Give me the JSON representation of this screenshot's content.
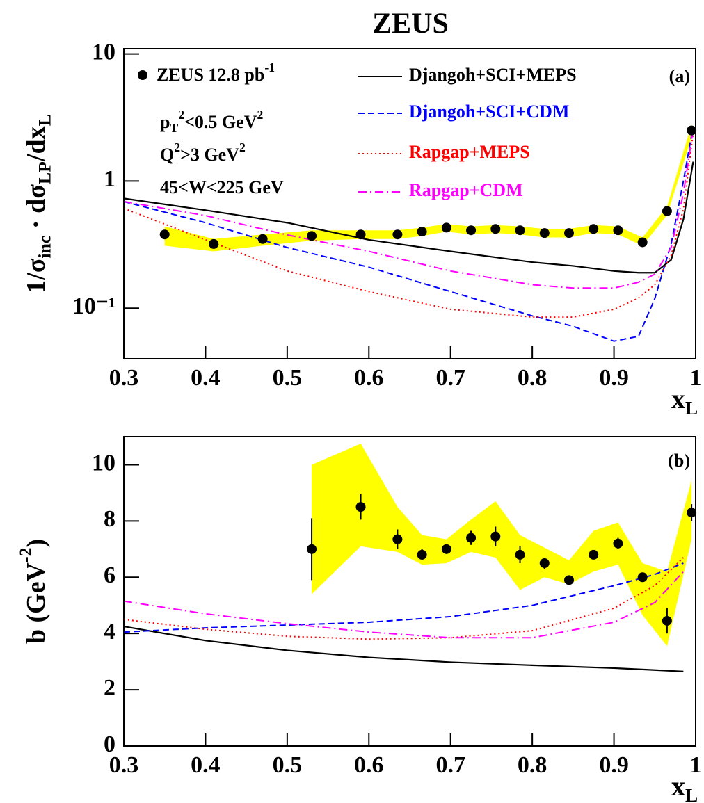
{
  "chart_data": [
    {
      "type": "line",
      "title": "ZEUS",
      "panel_label": "(a)",
      "log_y": true,
      "ylabel_parts": [
        {
          "t": "1/σ"
        },
        {
          "t": "inc",
          "s": "sub"
        },
        {
          "t": " · dσ"
        },
        {
          "t": "LP",
          "s": "sub"
        },
        {
          "t": "/dx"
        },
        {
          "t": "L",
          "s": "sub"
        }
      ],
      "xlabel_parts": [
        {
          "t": "x"
        },
        {
          "t": "L",
          "s": "sub"
        }
      ],
      "xlim": [
        0.3,
        1
      ],
      "xticks": [
        0.3,
        0.4,
        0.5,
        0.6,
        0.7,
        0.8,
        0.9,
        1
      ],
      "ylim": [
        0.04,
        11
      ],
      "yticks": [
        {
          "value": 0.1,
          "label": "10⁻¹"
        },
        1,
        10
      ],
      "annotations": [
        [
          {
            "t": "p"
          },
          {
            "t": "T",
            "s": "sub"
          },
          {
            "t": "2",
            "s": "sup"
          },
          {
            "t": "<0.5 GeV"
          },
          {
            "t": "2",
            "s": "sup"
          }
        ],
        [
          {
            "t": "Q"
          },
          {
            "t": "2",
            "s": "sup"
          },
          {
            "t": ">3 GeV"
          },
          {
            "t": "2",
            "s": "sup"
          }
        ],
        [
          {
            "t": "45<W<225 GeV"
          }
        ]
      ],
      "series": [
        {
          "kind": "points",
          "name_parts": [
            {
              "t": "ZEUS 12.8 pb"
            },
            {
              "t": "-1",
              "s": "sup"
            }
          ],
          "color": "#000000",
          "band_color": "#ffff00",
          "x": [
            0.35,
            0.41,
            0.47,
            0.53,
            0.59,
            0.635,
            0.665,
            0.695,
            0.725,
            0.755,
            0.785,
            0.815,
            0.845,
            0.875,
            0.905,
            0.935,
            0.965,
            0.995
          ],
          "values": [
            0.38,
            0.32,
            0.35,
            0.37,
            0.38,
            0.38,
            0.4,
            0.43,
            0.41,
            0.42,
            0.41,
            0.39,
            0.39,
            0.42,
            0.41,
            0.33,
            0.58,
            2.5
          ],
          "band_lower": [
            0.31,
            0.28,
            0.31,
            0.34,
            0.35,
            0.35,
            0.37,
            0.4,
            0.38,
            0.39,
            0.38,
            0.36,
            0.36,
            0.39,
            0.38,
            0.31,
            0.54,
            2.2
          ],
          "band_upper": [
            0.44,
            0.35,
            0.38,
            0.41,
            0.41,
            0.41,
            0.43,
            0.46,
            0.44,
            0.45,
            0.44,
            0.42,
            0.42,
            0.45,
            0.44,
            0.36,
            0.63,
            2.8
          ]
        },
        {
          "kind": "line",
          "name": "Djangoh+SCI+MEPS",
          "color": "#000000",
          "style": "solid",
          "x": [
            0.3,
            0.4,
            0.5,
            0.6,
            0.7,
            0.8,
            0.85,
            0.9,
            0.93,
            0.95,
            0.97,
            0.985,
            0.997
          ],
          "values": [
            0.73,
            0.59,
            0.47,
            0.345,
            0.28,
            0.23,
            0.215,
            0.196,
            0.19,
            0.19,
            0.24,
            0.5,
            1.42
          ]
        },
        {
          "kind": "line",
          "name": "Djangoh+SCI+CDM",
          "color": "#0000ff",
          "style": "dashed",
          "x": [
            0.3,
            0.4,
            0.5,
            0.6,
            0.7,
            0.8,
            0.85,
            0.9,
            0.93,
            0.95,
            0.97,
            0.985,
            0.997
          ],
          "values": [
            0.69,
            0.47,
            0.3,
            0.21,
            0.135,
            0.087,
            0.072,
            0.055,
            0.06,
            0.119,
            0.32,
            1.0,
            2.7
          ]
        },
        {
          "kind": "line",
          "name": "Rapgap+MEPS",
          "color": "#ff0000",
          "style": "dotted",
          "x": [
            0.3,
            0.4,
            0.5,
            0.6,
            0.7,
            0.8,
            0.85,
            0.9,
            0.93,
            0.95,
            0.97,
            0.985,
            0.997
          ],
          "values": [
            0.61,
            0.345,
            0.196,
            0.135,
            0.098,
            0.085,
            0.085,
            0.098,
            0.12,
            0.153,
            0.26,
            0.6,
            2.4
          ]
        },
        {
          "kind": "line",
          "name": "Rapgap+CDM",
          "color": "#ff00ff",
          "style": "dashdot",
          "x": [
            0.3,
            0.4,
            0.5,
            0.6,
            0.7,
            0.8,
            0.85,
            0.9,
            0.93,
            0.95,
            0.97,
            0.985,
            0.997
          ],
          "values": [
            0.69,
            0.535,
            0.377,
            0.28,
            0.196,
            0.153,
            0.144,
            0.144,
            0.16,
            0.185,
            0.3,
            0.8,
            2.56
          ]
        }
      ]
    },
    {
      "type": "line",
      "panel_label": "(b)",
      "log_y": false,
      "ylabel_parts": [
        {
          "t": "b (GeV"
        },
        {
          "t": "-2",
          "s": "sup"
        },
        {
          "t": ")"
        }
      ],
      "xlabel_parts": [
        {
          "t": "x"
        },
        {
          "t": "L",
          "s": "sub"
        }
      ],
      "xlim": [
        0.3,
        1
      ],
      "xticks": [
        0.3,
        0.4,
        0.5,
        0.6,
        0.7,
        0.8,
        0.9,
        1
      ],
      "ylim": [
        0,
        11
      ],
      "yticks": [
        0,
        2,
        4,
        6,
        8,
        10
      ],
      "series": [
        {
          "kind": "points",
          "color": "#000000",
          "band_color": "#ffff00",
          "x": [
            0.53,
            0.59,
            0.635,
            0.665,
            0.695,
            0.725,
            0.755,
            0.785,
            0.815,
            0.845,
            0.875,
            0.905,
            0.935,
            0.965,
            0.995
          ],
          "values": [
            7.0,
            8.5,
            7.35,
            6.8,
            7.0,
            7.4,
            7.45,
            6.8,
            6.5,
            5.9,
            6.8,
            7.2,
            6.0,
            4.45,
            8.3
          ],
          "errors": [
            1.1,
            0.45,
            0.35,
            0.2,
            0.15,
            0.25,
            0.35,
            0.3,
            0.2,
            0.1,
            0.1,
            0.2,
            0.15,
            0.45,
            0.3
          ],
          "band_lower": [
            5.4,
            7.1,
            6.9,
            6.45,
            6.5,
            6.9,
            6.7,
            5.55,
            6.0,
            5.75,
            6.2,
            6.45,
            4.65,
            3.55,
            7.35
          ],
          "band_upper": [
            10.0,
            10.75,
            8.5,
            7.5,
            7.35,
            8.05,
            8.7,
            7.5,
            7.05,
            6.6,
            7.65,
            7.95,
            6.5,
            6.2,
            9.45
          ]
        },
        {
          "kind": "line",
          "color": "#000000",
          "style": "solid",
          "x": [
            0.3,
            0.4,
            0.5,
            0.6,
            0.7,
            0.8,
            0.9,
            0.95,
            0.985
          ],
          "values": [
            4.25,
            3.75,
            3.4,
            3.15,
            2.98,
            2.87,
            2.77,
            2.7,
            2.65
          ]
        },
        {
          "kind": "line",
          "color": "#0000ff",
          "style": "dashed",
          "x": [
            0.3,
            0.4,
            0.5,
            0.6,
            0.7,
            0.8,
            0.9,
            0.95,
            0.985
          ],
          "values": [
            4.05,
            4.2,
            4.3,
            4.4,
            4.6,
            5.0,
            5.7,
            6.1,
            6.5
          ]
        },
        {
          "kind": "line",
          "color": "#ff0000",
          "style": "dotted",
          "x": [
            0.3,
            0.4,
            0.5,
            0.6,
            0.7,
            0.8,
            0.9,
            0.95,
            0.985
          ],
          "values": [
            4.5,
            4.15,
            3.9,
            3.8,
            3.85,
            4.1,
            4.9,
            5.7,
            6.7
          ]
        },
        {
          "kind": "line",
          "color": "#ff00ff",
          "style": "dashdot",
          "x": [
            0.3,
            0.4,
            0.5,
            0.6,
            0.7,
            0.8,
            0.9,
            0.95,
            0.985
          ],
          "values": [
            5.15,
            4.7,
            4.35,
            4.05,
            3.85,
            3.85,
            4.4,
            5.1,
            6.2
          ]
        }
      ]
    }
  ]
}
